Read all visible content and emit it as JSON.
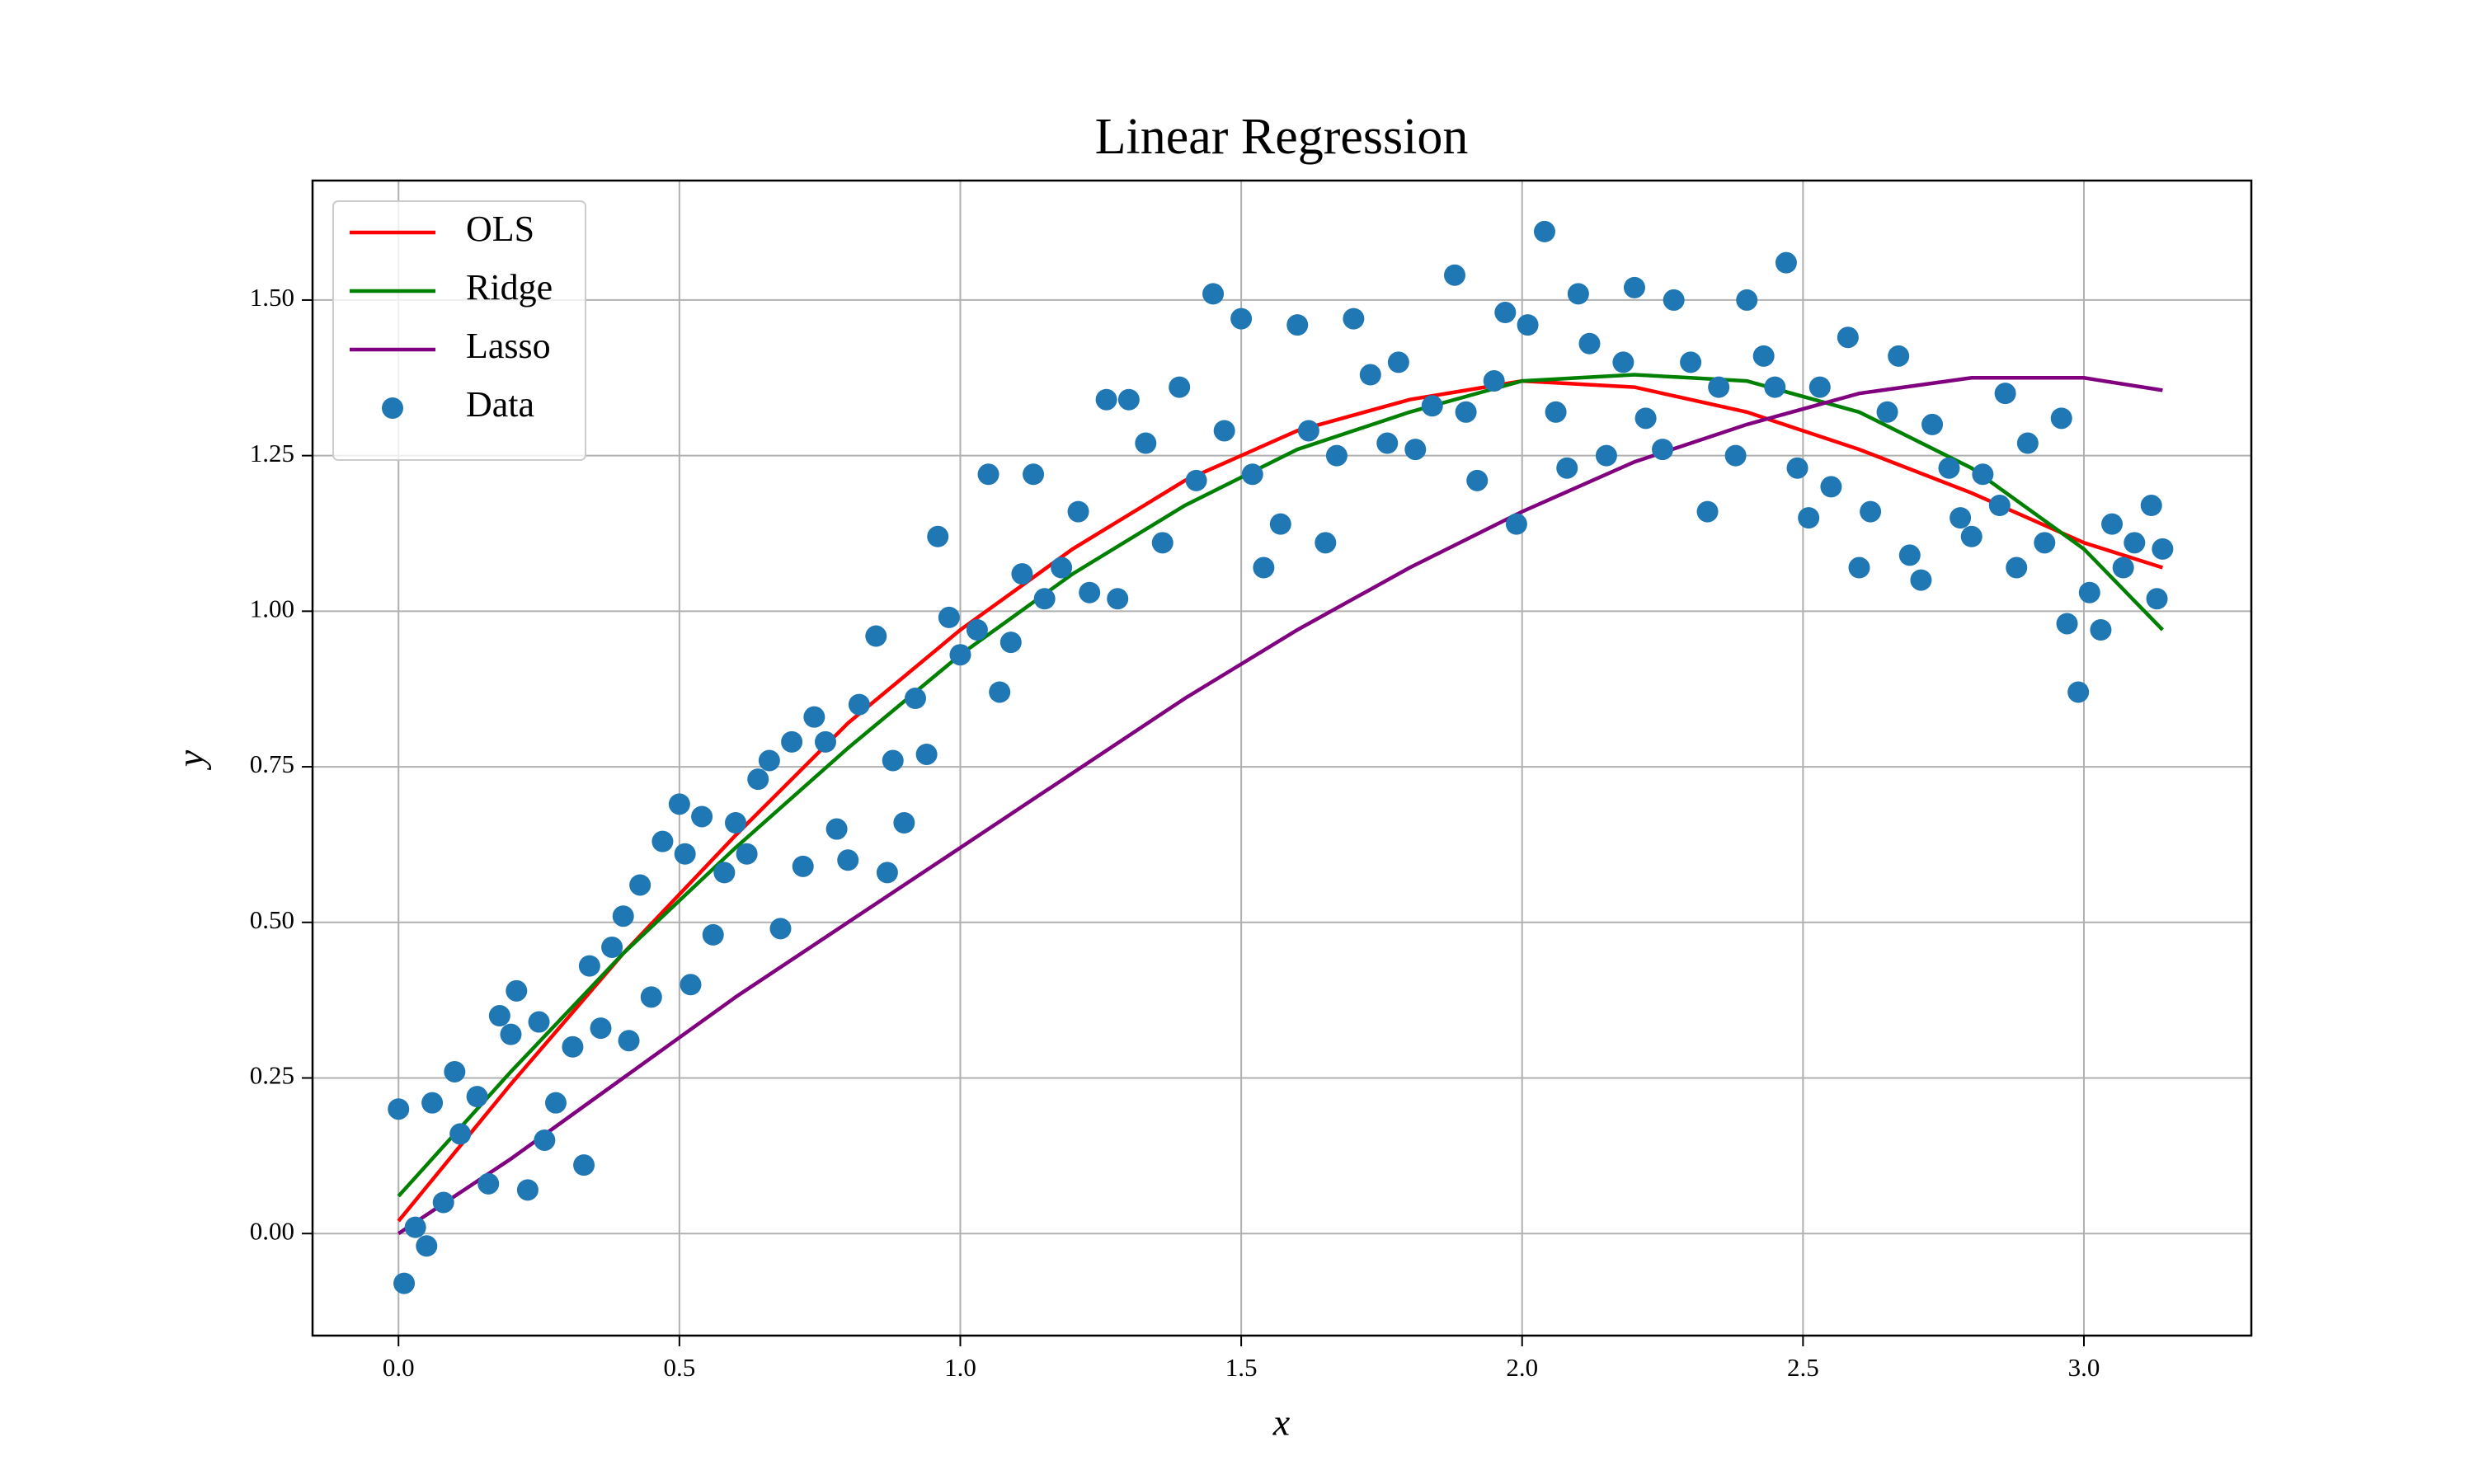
{
  "chart_data": {
    "type": "scatter",
    "title": "Linear Regression",
    "x_label": "x",
    "y_label": "y",
    "xlim": [
      -0.153,
      3.298
    ],
    "ylim": [
      -0.164,
      1.692
    ],
    "xticks": [
      {
        "value": 0,
        "label": "0.0"
      },
      0.5,
      {
        "value": 1,
        "label": "1.0"
      },
      1.5,
      {
        "value": 2,
        "label": "2.0"
      },
      2.5,
      {
        "value": 3,
        "label": "3.0"
      }
    ],
    "yticks": [
      {
        "value": 0,
        "label": "0.00"
      },
      {
        "value": 0.25,
        "label": "0.25"
      },
      {
        "value": 0.5,
        "label": "0.50"
      },
      {
        "value": 0.75,
        "label": "0.75"
      },
      {
        "value": 1,
        "label": "1.00"
      },
      {
        "value": 1.25,
        "label": "1.25"
      },
      {
        "value": 1.5,
        "label": "1.50"
      }
    ],
    "grid": true,
    "legend": "upper left",
    "series": [
      {
        "name": "OLS",
        "type": "line",
        "color": "#ff0000",
        "x": [
          0,
          0.2,
          0.4,
          0.6,
          0.8,
          1.0,
          1.2,
          1.4,
          1.6,
          1.8,
          2.0,
          2.2,
          2.4,
          2.6,
          2.8,
          3.0,
          3.14
        ],
        "values": [
          0.02,
          0.24,
          0.45,
          0.64,
          0.82,
          0.97,
          1.1,
          1.21,
          1.29,
          1.34,
          1.37,
          1.36,
          1.32,
          1.26,
          1.19,
          1.11,
          1.07
        ]
      },
      {
        "name": "Ridge",
        "type": "line",
        "color": "#008000",
        "x": [
          0,
          0.2,
          0.4,
          0.6,
          0.8,
          1.0,
          1.2,
          1.4,
          1.6,
          1.8,
          2.0,
          2.2,
          2.4,
          2.6,
          2.8,
          3.0,
          3.14
        ],
        "values": [
          0.06,
          0.26,
          0.45,
          0.62,
          0.78,
          0.93,
          1.06,
          1.17,
          1.26,
          1.32,
          1.37,
          1.38,
          1.37,
          1.32,
          1.23,
          1.1,
          0.97
        ]
      },
      {
        "name": "Lasso",
        "type": "line",
        "color": "#800080",
        "x": [
          0,
          0.2,
          0.4,
          0.6,
          0.8,
          1.0,
          1.2,
          1.4,
          1.6,
          1.8,
          2.0,
          2.2,
          2.4,
          2.6,
          2.8,
          3.0,
          3.14
        ],
        "values": [
          0,
          0.12,
          0.25,
          0.38,
          0.5,
          0.62,
          0.74,
          0.86,
          0.97,
          1.07,
          1.16,
          1.24,
          1.3,
          1.35,
          1.375,
          1.375,
          1.355
        ]
      },
      {
        "name": "Data",
        "type": "scatter",
        "color": "#1f77b4",
        "x": [
          0.0,
          0.01,
          0.03,
          0.05,
          0.06,
          0.08,
          0.1,
          0.11,
          0.14,
          0.16,
          0.18,
          0.2,
          0.21,
          0.23,
          0.25,
          0.26,
          0.28,
          0.31,
          0.33,
          0.34,
          0.36,
          0.38,
          0.4,
          0.41,
          0.43,
          0.45,
          0.47,
          0.5,
          0.51,
          0.52,
          0.54,
          0.56,
          0.58,
          0.6,
          0.62,
          0.64,
          0.66,
          0.68,
          0.7,
          0.72,
          0.74,
          0.76,
          0.78,
          0.8,
          0.82,
          0.85,
          0.87,
          0.88,
          0.9,
          0.92,
          0.94,
          0.96,
          0.98,
          1.0,
          1.03,
          1.05,
          1.07,
          1.09,
          1.11,
          1.13,
          1.15,
          1.18,
          1.21,
          1.23,
          1.26,
          1.28,
          1.3,
          1.33,
          1.36,
          1.39,
          1.42,
          1.45,
          1.47,
          1.5,
          1.52,
          1.54,
          1.57,
          1.6,
          1.62,
          1.65,
          1.67,
          1.7,
          1.73,
          1.76,
          1.78,
          1.81,
          1.84,
          1.88,
          1.9,
          1.92,
          1.95,
          1.97,
          1.99,
          2.01,
          2.04,
          2.06,
          2.08,
          2.1,
          2.12,
          2.15,
          2.18,
          2.2,
          2.22,
          2.25,
          2.27,
          2.3,
          2.33,
          2.35,
          2.38,
          2.4,
          2.43,
          2.45,
          2.47,
          2.49,
          2.51,
          2.53,
          2.55,
          2.58,
          2.6,
          2.62,
          2.65,
          2.67,
          2.69,
          2.71,
          2.73,
          2.76,
          2.78,
          2.8,
          2.82,
          2.85,
          2.86,
          2.88,
          2.9,
          2.93,
          2.96,
          2.97,
          2.99,
          3.01,
          3.03,
          3.05,
          3.07,
          3.09,
          3.12,
          3.13,
          3.14
        ],
        "values": [
          0.2,
          -0.08,
          0.01,
          -0.02,
          0.21,
          0.05,
          0.26,
          0.16,
          0.22,
          0.08,
          0.35,
          0.32,
          0.39,
          0.07,
          0.34,
          0.15,
          0.21,
          0.3,
          0.11,
          0.43,
          0.33,
          0.46,
          0.51,
          0.31,
          0.56,
          0.38,
          0.63,
          0.69,
          0.61,
          0.4,
          0.67,
          0.48,
          0.58,
          0.66,
          0.61,
          0.73,
          0.76,
          0.49,
          0.79,
          0.59,
          0.83,
          0.79,
          0.65,
          0.6,
          0.85,
          0.96,
          0.58,
          0.76,
          0.66,
          0.86,
          0.77,
          1.12,
          0.99,
          0.93,
          0.97,
          1.22,
          0.87,
          0.95,
          1.06,
          1.22,
          1.02,
          1.07,
          1.16,
          1.03,
          1.34,
          1.02,
          1.34,
          1.27,
          1.11,
          1.36,
          1.21,
          1.51,
          1.29,
          1.47,
          1.22,
          1.07,
          1.14,
          1.46,
          1.29,
          1.11,
          1.25,
          1.47,
          1.38,
          1.27,
          1.4,
          1.26,
          1.33,
          1.54,
          1.32,
          1.21,
          1.37,
          1.48,
          1.14,
          1.46,
          1.61,
          1.32,
          1.23,
          1.51,
          1.43,
          1.25,
          1.4,
          1.52,
          1.31,
          1.26,
          1.5,
          1.4,
          1.16,
          1.36,
          1.25,
          1.5,
          1.41,
          1.36,
          1.56,
          1.23,
          1.15,
          1.36,
          1.2,
          1.44,
          1.07,
          1.16,
          1.32,
          1.41,
          1.09,
          1.05,
          1.3,
          1.23,
          1.15,
          1.12,
          1.22,
          1.17,
          1.35,
          1.07,
          1.27,
          1.11,
          1.31,
          0.98,
          0.87,
          1.03,
          0.97,
          1.14,
          1.07,
          1.11,
          1.17,
          1.02,
          1.1
        ]
      }
    ]
  }
}
